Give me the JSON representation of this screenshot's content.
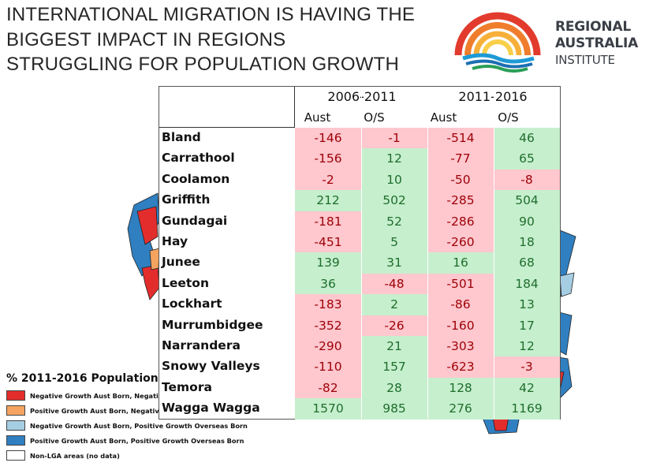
{
  "title": "INTERNATIONAL MIGRATION IS HAVING THE BIGGEST IMPACT IN REGIONS STRUGGLING FOR POPULATION GROWTH",
  "logo": {
    "line1": "REGIONAL",
    "line2": "AUSTRALIA",
    "line3": "INSTITUTE"
  },
  "legend": {
    "title": "% 2011-2016 Population",
    "items": [
      {
        "label": "Negative Growth Aust Born, Negative",
        "color": "#e32d2d"
      },
      {
        "label": "Positive Growth Aust Born, Negative",
        "color": "#f4a460"
      },
      {
        "label": "Negative Growth Aust Born, Positive Growth Overseas Born",
        "color": "#a6cee3"
      },
      {
        "label": "Positive Growth Aust Born, Positive Growth Overseas Born",
        "color": "#2f7fc1"
      },
      {
        "label": "Non-LGA areas (no data)",
        "color": "#ffffff"
      }
    ]
  },
  "table": {
    "periods": [
      "2006-2011",
      "2011-2016"
    ],
    "subheaders": [
      "Aust",
      "O/S",
      "Aust",
      "O/S"
    ],
    "rows": [
      {
        "name": "Bland",
        "v": [
          "-146",
          "-1",
          "-514",
          "46"
        ]
      },
      {
        "name": "Carrathool",
        "v": [
          "-156",
          "12",
          "-77",
          "65"
        ]
      },
      {
        "name": "Coolamon",
        "v": [
          "-2",
          "10",
          "-50",
          "-8"
        ]
      },
      {
        "name": "Griffith",
        "v": [
          "212",
          "502",
          "-285",
          "504"
        ]
      },
      {
        "name": "Gundagai",
        "v": [
          "-181",
          "52",
          "-286",
          "90"
        ]
      },
      {
        "name": "Hay",
        "v": [
          "-451",
          "5",
          "-260",
          "18"
        ]
      },
      {
        "name": "Junee",
        "v": [
          "139",
          "31",
          "16",
          "68"
        ]
      },
      {
        "name": "Leeton",
        "v": [
          "36",
          "-48",
          "-501",
          "184"
        ]
      },
      {
        "name": "Lockhart",
        "v": [
          "-183",
          "2",
          "-86",
          "13"
        ]
      },
      {
        "name": "Murrumbidgee",
        "v": [
          "-352",
          "-26",
          "-160",
          "17"
        ]
      },
      {
        "name": "Narrandera",
        "v": [
          "-290",
          "21",
          "-303",
          "12"
        ]
      },
      {
        "name": "Snowy Valleys",
        "v": [
          "-110",
          "157",
          "-623",
          "-3"
        ]
      },
      {
        "name": "Temora",
        "v": [
          "-82",
          "28",
          "128",
          "42"
        ]
      },
      {
        "name": "Wagga Wagga",
        "v": [
          "1570",
          "985",
          "276",
          "1169"
        ]
      }
    ]
  }
}
